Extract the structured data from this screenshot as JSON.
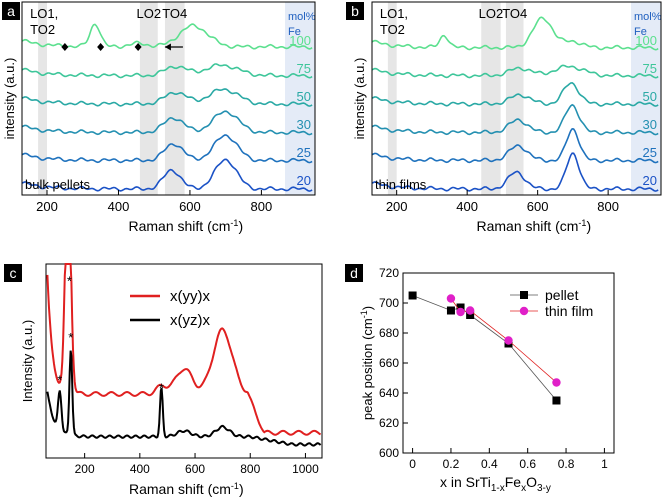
{
  "chart_data": [
    {
      "panel": "a",
      "type": "line",
      "caption": "bulk pellets",
      "xlabel": "Raman shift (cm",
      "xlabel_sup": "-1",
      "xlabel_tail": ")",
      "ylabel": "intensity (a.u.)",
      "xlim": [
        130,
        950
      ],
      "xticks": [
        200,
        400,
        600,
        800
      ],
      "bands": [
        {
          "label": "LO1,",
          "label2": "TO2",
          "x0": 175,
          "x1": 200
        },
        {
          "label": "LO2",
          "x0": 460,
          "x1": 510
        },
        {
          "label": "TO4",
          "x0": 530,
          "x1": 585
        }
      ],
      "unit_label": [
        "mol%",
        "Fe"
      ],
      "markers": {
        "diamonds": [
          250,
          350,
          455
        ],
        "arrow_x": 530
      },
      "series": [
        {
          "name": "100",
          "color": "#5ce08f",
          "peaks": [
            [
              335,
              0.55,
              14
            ],
            [
              455,
              0.08,
              25
            ],
            [
              610,
              0.5,
              40
            ]
          ],
          "base": 0.25
        },
        {
          "name": "75",
          "color": "#3ec69a",
          "peaks": [
            [
              560,
              0.22,
              30
            ],
            [
              690,
              0.25,
              45
            ]
          ],
          "base": 0.2
        },
        {
          "name": "50",
          "color": "#2aa9a5",
          "peaks": [
            [
              560,
              0.28,
              30
            ],
            [
              695,
              0.35,
              40
            ]
          ],
          "base": 0.18
        },
        {
          "name": "30",
          "color": "#2490b1",
          "peaks": [
            [
              555,
              0.35,
              28
            ],
            [
              700,
              0.5,
              35
            ]
          ],
          "base": 0.15
        },
        {
          "name": "25",
          "color": "#1f72bd",
          "peaks": [
            [
              555,
              0.4,
              26
            ],
            [
              700,
              0.6,
              32
            ]
          ],
          "base": 0.15
        },
        {
          "name": "20",
          "color": "#1b52c6",
          "peaks": [
            [
              550,
              0.45,
              24
            ],
            [
              700,
              0.7,
              30
            ]
          ],
          "base": 0.12
        }
      ]
    },
    {
      "panel": "b",
      "type": "line",
      "caption": "thin films",
      "xlabel": "Raman shift (cm",
      "xlabel_sup": "-1",
      "xlabel_tail": ")",
      "ylabel": "intensity (a.u.)",
      "xlim": [
        130,
        950
      ],
      "xticks": [
        200,
        400,
        600,
        800
      ],
      "bands": [
        {
          "label": "LO1,",
          "label2": "TO2",
          "x0": 175,
          "x1": 200
        },
        {
          "label": "LO2",
          "x0": 440,
          "x1": 495
        },
        {
          "label": "TO4",
          "x0": 510,
          "x1": 560
        }
      ],
      "unit_label": [
        "mol%",
        "Fe"
      ],
      "series": [
        {
          "name": "100",
          "color": "#5ce08f",
          "peaks": [
            [
              335,
              0.3,
              12
            ],
            [
              615,
              0.7,
              28
            ],
            [
              700,
              0.15,
              25
            ]
          ],
          "base": 0.2
        },
        {
          "name": "75",
          "color": "#3ec69a",
          "peaks": [
            [
              550,
              0.18,
              30
            ],
            [
              690,
              0.22,
              40
            ]
          ],
          "base": 0.2
        },
        {
          "name": "50",
          "color": "#2aa9a5",
          "peaks": [
            [
              550,
              0.22,
              28
            ],
            [
              695,
              0.5,
              22
            ]
          ],
          "base": 0.18
        },
        {
          "name": "30",
          "color": "#2490b1",
          "peaks": [
            [
              545,
              0.3,
              26
            ],
            [
              698,
              0.65,
              20
            ]
          ],
          "base": 0.15
        },
        {
          "name": "25",
          "color": "#1f72bd",
          "peaks": [
            [
              545,
              0.35,
              26
            ],
            [
              700,
              0.75,
              18
            ]
          ],
          "base": 0.15
        },
        {
          "name": "20",
          "color": "#1b52c6",
          "peaks": [
            [
              540,
              0.4,
              24
            ],
            [
              700,
              0.85,
              18
            ]
          ],
          "base": 0.12
        }
      ]
    },
    {
      "panel": "c",
      "type": "line",
      "xlabel": "Raman shift (cm",
      "xlabel_sup": "-1",
      "xlabel_tail": ")",
      "ylabel": "Intensity (a.u.)",
      "xlim": [
        60,
        1060
      ],
      "xticks": [
        200,
        400,
        600,
        800,
        1000
      ],
      "asterisk_label": "*",
      "asterisks": [
        [
          145,
          0.93
        ],
        [
          110,
          0.42
        ],
        [
          150,
          0.64
        ],
        [
          478,
          0.38
        ]
      ],
      "series": [
        {
          "name": "x(yy)x",
          "color": "#e02020"
        },
        {
          "name": "x(yz)x",
          "color": "#000000"
        }
      ]
    },
    {
      "panel": "d",
      "type": "scatter",
      "xlabel": "x in SrTi1-xFexO3-y",
      "xlabel_parts": [
        "x in SrTi",
        "1-x",
        "Fe",
        "x",
        "O",
        "3-y"
      ],
      "ylabel": "peak position (cm",
      "ylabel_sup": "-1",
      "ylabel_tail": ")",
      "xlim": [
        -0.05,
        1.05
      ],
      "ylim": [
        600,
        720
      ],
      "xticks": [
        0,
        0.2,
        0.4,
        0.6,
        0.8,
        1
      ],
      "xtick_labels": [
        "0",
        "0.2",
        "0.4",
        "0.6",
        "0.8",
        "1"
      ],
      "yticks": [
        600,
        620,
        640,
        660,
        680,
        700,
        720
      ],
      "series": [
        {
          "name": "pellet",
          "color": "#000000",
          "line_color": "#555555",
          "marker": "square",
          "x": [
            0,
            0.2,
            0.25,
            0.3,
            0.5,
            0.75
          ],
          "y": [
            705,
            695,
            697,
            692,
            673,
            635
          ]
        },
        {
          "name": "thin film",
          "color": "#e020c8",
          "line_color": "#e02020",
          "marker": "circle",
          "x": [
            0.2,
            0.25,
            0.3,
            0.5,
            0.75
          ],
          "y": [
            703,
            694,
            695,
            675,
            647
          ]
        }
      ]
    }
  ]
}
